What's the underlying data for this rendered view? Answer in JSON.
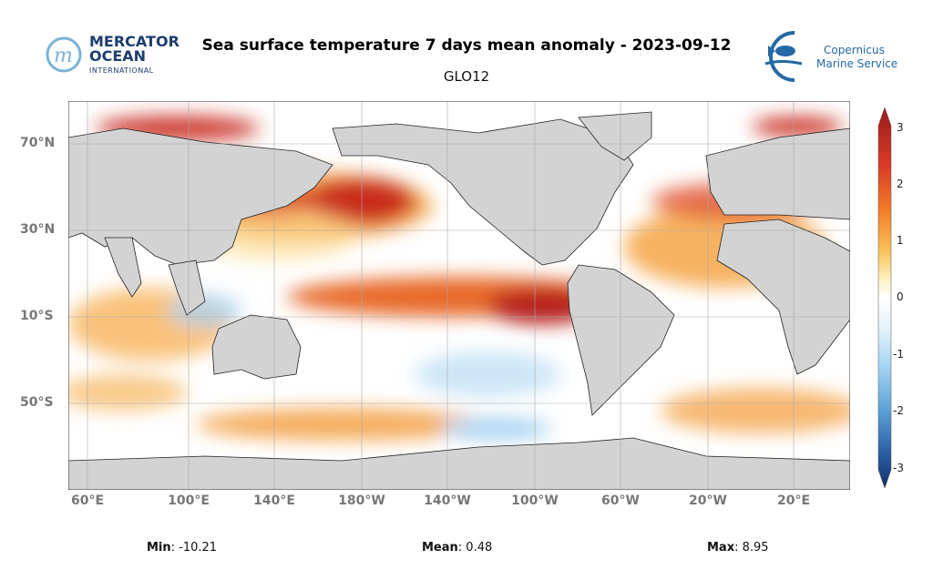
{
  "header": {
    "title": "Sea surface temperature 7 days mean anomaly - 2023-09-12",
    "subtitle": "GLO12"
  },
  "logos": {
    "left": {
      "line1": "MERCATOR",
      "line2": "OCEAN",
      "line3": "INTERNATIONAL"
    },
    "right": {
      "line1": "Copernicus",
      "line2": "Marine Service"
    }
  },
  "map": {
    "lat_labels": [
      "70°N",
      "30°N",
      "10°S",
      "50°S"
    ],
    "lon_labels": [
      "60°E",
      "100°E",
      "140°E",
      "180°W",
      "140°W",
      "100°W",
      "60°W",
      "20°W",
      "20°E"
    ]
  },
  "colorbar": {
    "ticks": [
      "3",
      "2",
      "1",
      "0",
      "-1",
      "-2",
      "-3"
    ],
    "colors": {
      "max": "#7f0d0d",
      "high": "#e85a20",
      "mid_high": "#fbbf4b",
      "zero": "#ffffff",
      "mid_low": "#9dd2f0",
      "low": "#3a6fb5",
      "min": "#122a60"
    }
  },
  "stats": {
    "min_label": "Min",
    "min_value": "-10.21",
    "mean_label": "Mean",
    "mean_value": "0.48",
    "max_label": "Max",
    "max_value": "8.95"
  }
}
